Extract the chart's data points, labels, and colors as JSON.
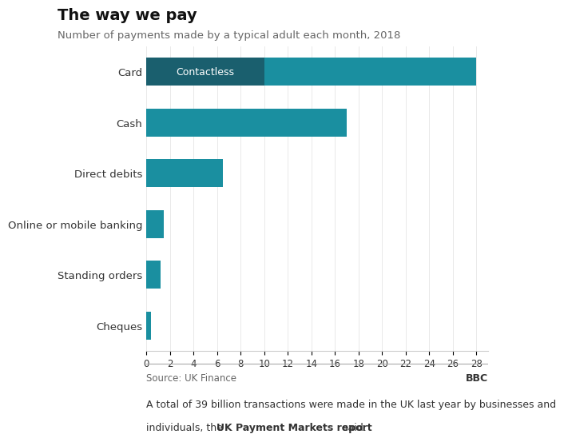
{
  "title": "The way we pay",
  "subtitle": "Number of payments made by a typical adult each month, 2018",
  "categories": [
    "Card",
    "Cash",
    "Direct debits",
    "Online or mobile banking",
    "Standing orders",
    "Cheques"
  ],
  "values": [
    28,
    17,
    6.5,
    1.5,
    1.2,
    0.4
  ],
  "contactless_value": 10,
  "bar_color": "#1a8fa0",
  "contactless_color": "#1a5f6e",
  "contactless_label": "Contactless",
  "xlabel_ticks": [
    0,
    2,
    4,
    6,
    8,
    10,
    12,
    14,
    16,
    18,
    20,
    22,
    24,
    26,
    28
  ],
  "source_text": "Source: UK Finance",
  "bbc_text": "BBC",
  "footer_line1": "A total of 39 billion transactions were made in the UK last year by businesses and",
  "footer_line2_pre": "individuals, the ",
  "footer_bold": "UK Payment Markets report",
  "footer_end": " said.",
  "background_color": "#ffffff",
  "xlim": [
    0,
    29
  ],
  "bar_height": 0.55
}
